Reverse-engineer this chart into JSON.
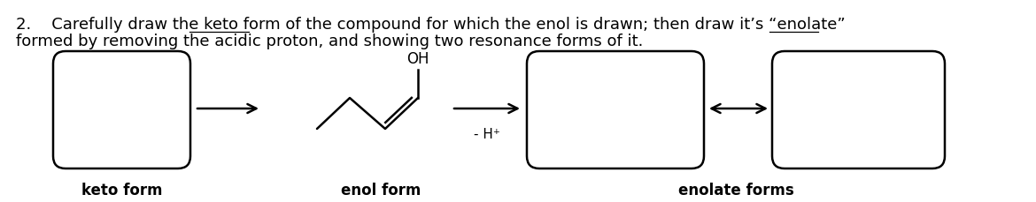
{
  "bg_color": "#ffffff",
  "text_color": "#000000",
  "title_line1": "2.    Carefully draw the keto form of the compound for which the enol is drawn; then draw it’s “enolate”",
  "title_line2": "formed by removing the acidic proton, and showing two resonance forms of it.",
  "box1_label": "keto form",
  "enol_label": "enol form",
  "enolate_label": "enolate forms",
  "minus_H": "- H⁺",
  "OH_label": "OH",
  "font_size_title": 13,
  "font_size_label": 12,
  "font_size_mol": 11
}
